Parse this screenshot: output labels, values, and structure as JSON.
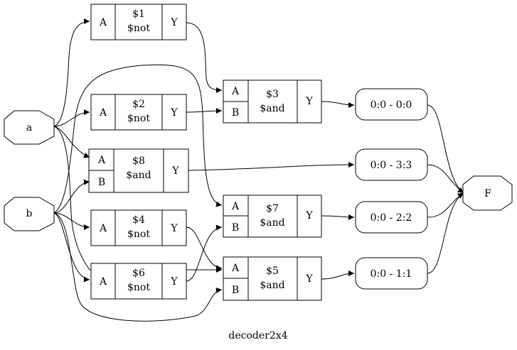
{
  "diagram": {
    "title": "decoder2x4",
    "inputs": {
      "a": "a",
      "b": "b"
    },
    "output": "F",
    "cells": {
      "not1": {
        "port_in": "A",
        "id": "$1",
        "type": "$not",
        "port_out": "Y"
      },
      "not2": {
        "port_in": "A",
        "id": "$2",
        "type": "$not",
        "port_out": "Y"
      },
      "not4": {
        "port_in": "A",
        "id": "$4",
        "type": "$not",
        "port_out": "Y"
      },
      "not6": {
        "port_in": "A",
        "id": "$6",
        "type": "$not",
        "port_out": "Y"
      },
      "and3": {
        "port_a": "A",
        "port_b": "B",
        "id": "$3",
        "type": "$and",
        "port_out": "Y"
      },
      "and8": {
        "port_a": "A",
        "port_b": "B",
        "id": "$8",
        "type": "$and",
        "port_out": "Y"
      },
      "and7": {
        "port_a": "A",
        "port_b": "B",
        "id": "$7",
        "type": "$and",
        "port_out": "Y"
      },
      "and5": {
        "port_a": "A",
        "port_b": "B",
        "id": "$5",
        "type": "$and",
        "port_out": "Y"
      }
    },
    "slices": {
      "s00": "0:0 - 0:0",
      "s33": "0:0 - 3:3",
      "s22": "0:0 - 2:2",
      "s11": "0:0 - 1:1"
    }
  }
}
